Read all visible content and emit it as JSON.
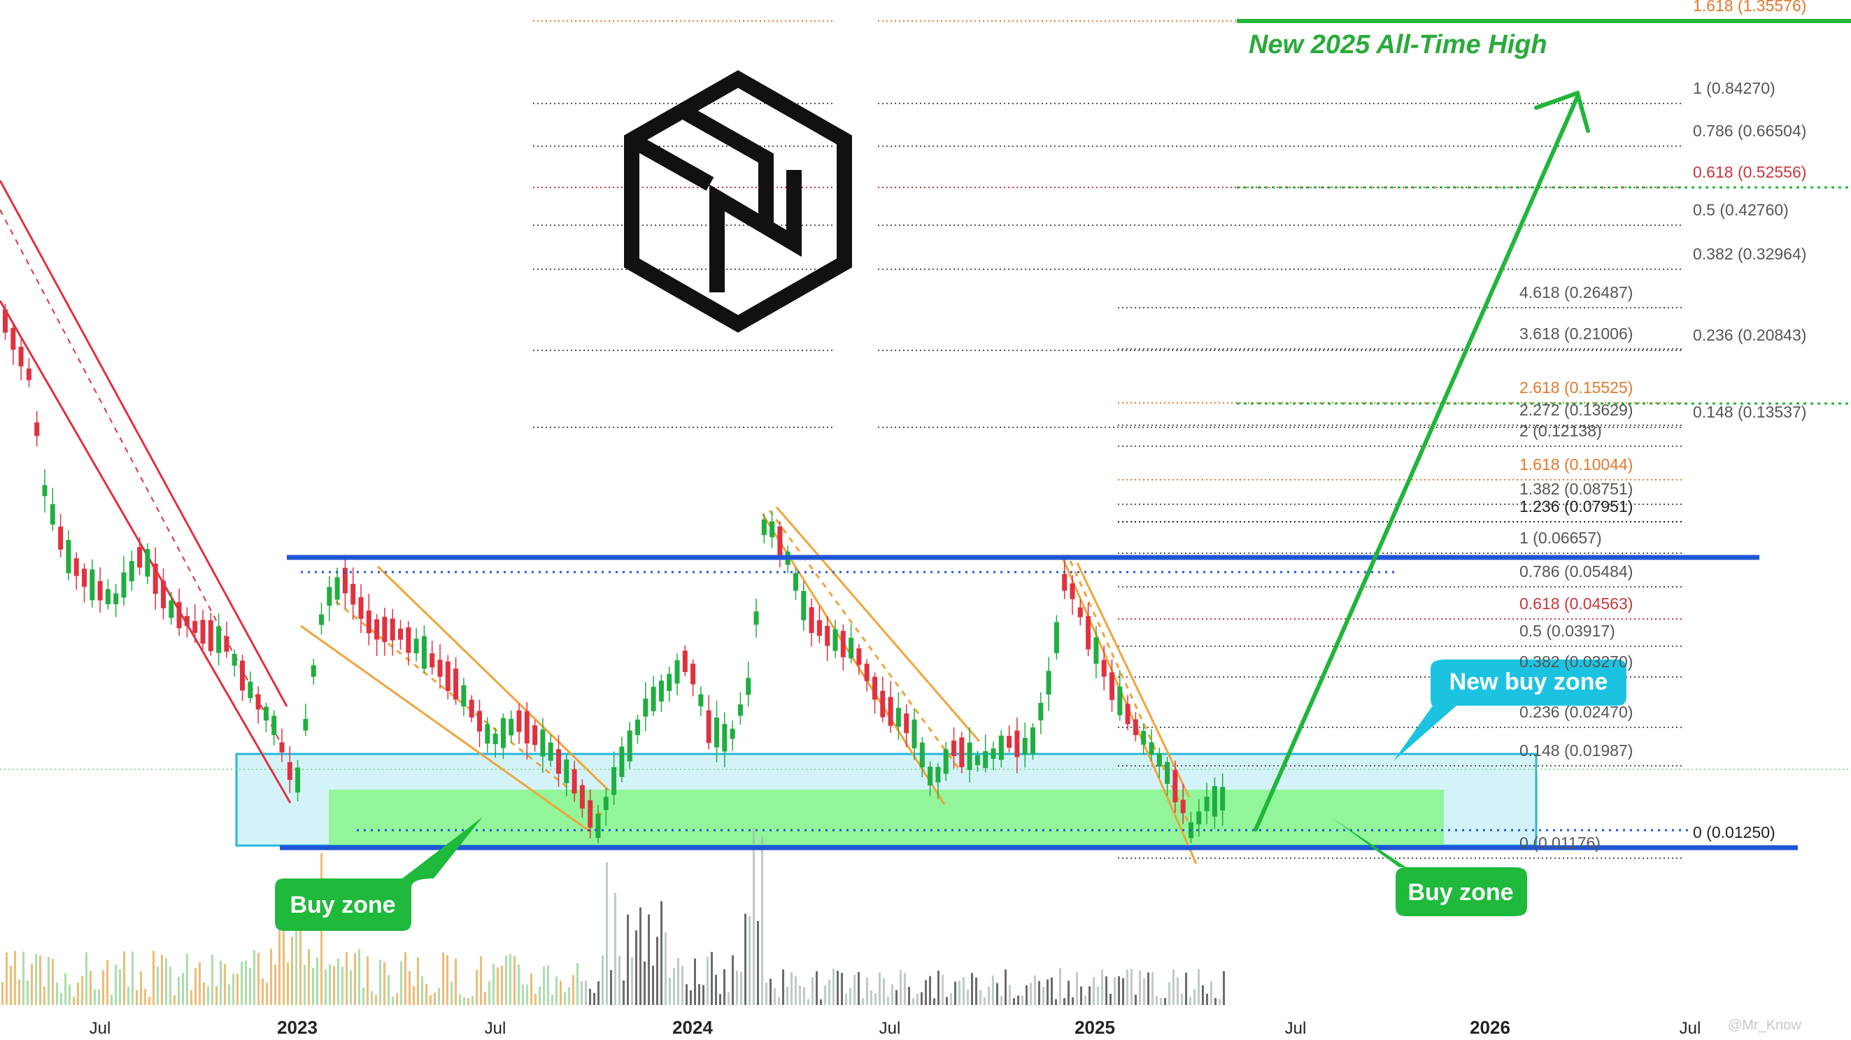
{
  "chart_data": {
    "type": "candlestick",
    "title": "",
    "colors": {
      "up": "#1fae3f",
      "down": "#e0313f",
      "blue_line": "#1f56d6",
      "green_arrow": "#21b53a",
      "fib_orange": "#e4782a",
      "fib_red": "#c9363c",
      "fib_gray": "#555555",
      "channel_orange": "#f0a43a",
      "channel_red": "#e0313f",
      "zone_blue": "#c9f0f7",
      "zone_green": "#86f48a",
      "callout_blue": "#1cc3e1",
      "callout_green": "#1fb93c"
    },
    "time_axis": [
      {
        "label": "Jul",
        "year": false
      },
      {
        "label": "2023",
        "year": true
      },
      {
        "label": "Jul",
        "year": false
      },
      {
        "label": "2024",
        "year": true
      },
      {
        "label": "Jul",
        "year": false
      },
      {
        "label": "2025",
        "year": true
      },
      {
        "label": "Jul",
        "year": false
      },
      {
        "label": "2026",
        "year": true
      },
      {
        "label": "Jul",
        "year": false
      }
    ],
    "fib_right": [
      {
        "ratio": "1.618",
        "value": "1.35576",
        "color": "#e4782a"
      },
      {
        "ratio": "1",
        "value": "0.84270",
        "color": "#555555"
      },
      {
        "ratio": "0.786",
        "value": "0.66504",
        "color": "#555555"
      },
      {
        "ratio": "0.618",
        "value": "0.52556",
        "color": "#c9363c"
      },
      {
        "ratio": "0.5",
        "value": "0.42760",
        "color": "#555555"
      },
      {
        "ratio": "0.382",
        "value": "0.32964",
        "color": "#555555"
      },
      {
        "ratio": "0.236",
        "value": "0.20843",
        "color": "#555555"
      },
      {
        "ratio": "0.148",
        "value": "0.13537",
        "color": "#555555"
      },
      {
        "ratio": "0",
        "value": "0.01250",
        "color": "#222222"
      }
    ],
    "fib_middle": [
      {
        "ratio": "4.618",
        "value": "0.26487",
        "color": "#555555"
      },
      {
        "ratio": "3.618",
        "value": "0.21006",
        "color": "#555555"
      },
      {
        "ratio": "2.618",
        "value": "0.15525",
        "color": "#e4782a"
      },
      {
        "ratio": "2.272",
        "value": "0.13629",
        "color": "#555555"
      },
      {
        "ratio": "2",
        "value": "0.12138",
        "color": "#555555"
      },
      {
        "ratio": "1.618",
        "value": "0.10044",
        "color": "#e4782a"
      },
      {
        "ratio": "1.382",
        "value": "0.08751",
        "color": "#555555"
      },
      {
        "ratio": "1.236",
        "value": "0.07951",
        "color": "#222222"
      },
      {
        "ratio": "1",
        "value": "0.06657",
        "color": "#555555"
      },
      {
        "ratio": "0.786",
        "value": "0.05484",
        "color": "#555555"
      },
      {
        "ratio": "0.618",
        "value": "0.04563",
        "color": "#c9363c"
      },
      {
        "ratio": "0.5",
        "value": "0.03917",
        "color": "#555555"
      },
      {
        "ratio": "0.382",
        "value": "0.03270",
        "color": "#555555"
      },
      {
        "ratio": "0.236",
        "value": "0.02470",
        "color": "#555555"
      },
      {
        "ratio": "0.148",
        "value": "0.01987",
        "color": "#555555"
      },
      {
        "ratio": "0",
        "value": "0.01176",
        "color": "#555555"
      }
    ],
    "annotations": {
      "ath": "New 2025 All-Time High",
      "new_buy_zone": "New buy zone",
      "buy_zone_left": "Buy zone",
      "buy_zone_right": "Buy zone"
    },
    "watermark": "@Mr_Know"
  }
}
